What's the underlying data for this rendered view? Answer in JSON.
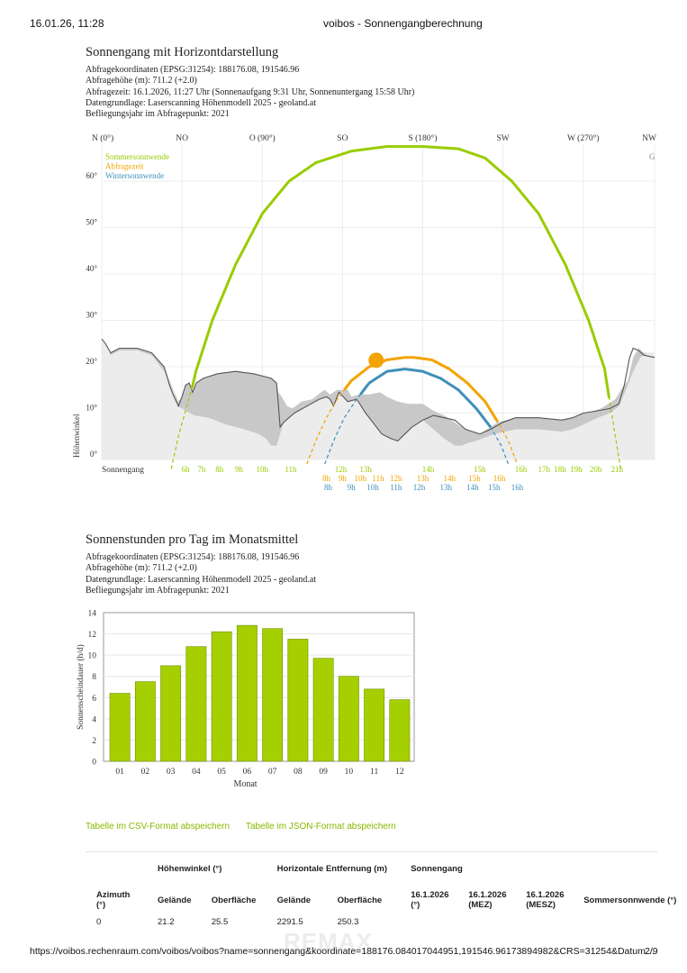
{
  "browser": {
    "datetime": "16.01.26, 11:28",
    "page_title": "voibos - Sonnengangberechnung",
    "url": "https://voibos.rechenraum.com/voibos/voibos?name=sonnengang&koordinate=188176.084017044951,191546.96173894982&CRS=31254&Datum…",
    "page_number": "2/9"
  },
  "section1": {
    "title": "Sonnengang mit Horizontdarstellung",
    "meta": [
      "Abfragekoordinaten (EPSG:31254): 188176.08, 191546.96",
      "Abfragehöhe (m): 711.2 (+2.0)",
      "Abfragezeit: 16.1.2026, 11:27 Uhr (Sonnenaufgang 9:31 Uhr,  Sonnenuntergang 15:58 Uhr)",
      "Datengrundlage: Laserscanning Höhenmodell 2025 - geoland.at",
      "Befliegungsjahr im Abfragepunkt: 2021"
    ]
  },
  "section2": {
    "title": "Sonnenstunden pro Tag im Monatsmittel",
    "meta": [
      "Abfragekoordinaten (EPSG:31254): 188176.08, 191546.96",
      "Abfragehöhe (m): 711.2 (+2.0)",
      "Datengrundlage: Laserscanning Höhenmodell 2025 - geoland.at",
      "Befliegungsjahr im Abfragepunkt: 2021"
    ]
  },
  "links": {
    "csv": "Tabelle im CSV-Format abspeichern",
    "json": "Tabelle im JSON-Format abspeichern"
  },
  "table": {
    "group_headers": [
      "Höhenwinkel (°)",
      "Horizontale Entfernung (m)",
      "Sonnengang"
    ],
    "columns": [
      "Azimuth (°)",
      "Gelände",
      "Oberfläche",
      "Gelände",
      "Oberfläche",
      "16.1.2026 (°)",
      "16.1.2026 (MEZ)",
      "16.1.2026 (MESZ)",
      "Sommersonnwende (°)"
    ],
    "rows": [
      [
        "0",
        "21.2",
        "25.5",
        "2291.5",
        "250.3",
        "",
        "",
        "",
        ""
      ]
    ]
  },
  "watermark": "REMAX",
  "chart_data": [
    {
      "type": "line",
      "title": "",
      "ylabel": "Höhenwinkel",
      "xlabel": "",
      "xlim": [
        0,
        310
      ],
      "ylim": [
        0,
        68
      ],
      "x_axis_labels": [
        {
          "az": 0,
          "label": "N (0°)"
        },
        {
          "az": 45,
          "label": "NO"
        },
        {
          "az": 90,
          "label": "O (90°)"
        },
        {
          "az": 135,
          "label": "SO"
        },
        {
          "az": 180,
          "label": "S (180°)"
        },
        {
          "az": 225,
          "label": "SW"
        },
        {
          "az": 270,
          "label": "W (270°)"
        },
        {
          "az": 315,
          "label": "NW"
        }
      ],
      "y_ticks": [
        "0°",
        "10°",
        "20°",
        "30°",
        "40°",
        "50°",
        "60°"
      ],
      "y_tick_values": [
        0,
        10,
        20,
        30,
        40,
        50,
        60
      ],
      "legend": [
        "Sommersonnwende",
        "Abfragezeit",
        "Wintersonnwende"
      ],
      "legend_placement": "top-left",
      "partial_label_right": "G",
      "colors": {
        "summer": "#99cc00",
        "query": "#f4a300",
        "winter": "#3e8fb8",
        "terrain": "#ececec",
        "surface": "#c8c8c8",
        "horizon_line": "#555555"
      },
      "terrain_horizon": [
        [
          0,
          26
        ],
        [
          2,
          25
        ],
        [
          5,
          22.5
        ],
        [
          10,
          23.5
        ],
        [
          20,
          23.5
        ],
        [
          28,
          22.5
        ],
        [
          35,
          19
        ],
        [
          40,
          14.5
        ],
        [
          43,
          11.5
        ],
        [
          47,
          10.5
        ],
        [
          52,
          9.5
        ],
        [
          60,
          9
        ],
        [
          70,
          7.5
        ],
        [
          80,
          6.5
        ],
        [
          88,
          5.5
        ],
        [
          92,
          4.5
        ],
        [
          95,
          3
        ],
        [
          98,
          3
        ],
        [
          102,
          8
        ],
        [
          108,
          10
        ],
        [
          115,
          11.5
        ],
        [
          122,
          13
        ],
        [
          126,
          13.5
        ],
        [
          128,
          13
        ],
        [
          130,
          11.5
        ],
        [
          133,
          14.5
        ],
        [
          138,
          12.5
        ],
        [
          143,
          13
        ],
        [
          148,
          10
        ],
        [
          152,
          8
        ],
        [
          157,
          5.5
        ],
        [
          162,
          4.5
        ],
        [
          166,
          4
        ],
        [
          170,
          5.5
        ],
        [
          174,
          7
        ],
        [
          180,
          8.5
        ],
        [
          186,
          6.5
        ],
        [
          192,
          4.5
        ],
        [
          198,
          3
        ],
        [
          202,
          3
        ],
        [
          205,
          3.5
        ],
        [
          210,
          4
        ],
        [
          220,
          5.5
        ],
        [
          232,
          6.5
        ],
        [
          245,
          6.5
        ],
        [
          258,
          6
        ],
        [
          264,
          6.5
        ],
        [
          270,
          7.5
        ],
        [
          278,
          9
        ],
        [
          285,
          10
        ],
        [
          290,
          11.5
        ],
        [
          295,
          16
        ],
        [
          298,
          19
        ],
        [
          302,
          22
        ],
        [
          306,
          23
        ],
        [
          310,
          23
        ]
      ],
      "surface_horizon": [
        [
          0,
          26
        ],
        [
          2,
          23.5
        ],
        [
          5,
          23
        ],
        [
          10,
          24
        ],
        [
          20,
          24
        ],
        [
          28,
          23
        ],
        [
          35,
          20
        ],
        [
          40,
          15
        ],
        [
          43,
          12.5
        ],
        [
          45,
          13.5
        ],
        [
          47,
          16
        ],
        [
          49,
          16.5
        ],
        [
          51,
          14.5
        ],
        [
          53,
          16.5
        ],
        [
          57,
          17.5
        ],
        [
          65,
          18.5
        ],
        [
          75,
          19
        ],
        [
          85,
          18.5
        ],
        [
          95,
          17.5
        ],
        [
          98,
          16.5
        ],
        [
          99,
          14.5
        ],
        [
          101,
          13.5
        ],
        [
          104,
          11.5
        ],
        [
          107,
          11
        ],
        [
          112,
          12.5
        ],
        [
          118,
          13
        ],
        [
          123,
          14.5
        ],
        [
          125,
          15
        ],
        [
          128,
          14
        ],
        [
          132,
          15
        ],
        [
          138,
          15
        ],
        [
          140,
          13.5
        ],
        [
          144,
          14
        ],
        [
          150,
          14
        ],
        [
          156,
          14.5
        ],
        [
          160,
          13.5
        ],
        [
          166,
          12.5
        ],
        [
          172,
          12
        ],
        [
          180,
          12
        ],
        [
          186,
          10.5
        ],
        [
          192,
          9.5
        ],
        [
          196,
          8.5
        ],
        [
          200,
          7.5
        ],
        [
          204,
          6.5
        ],
        [
          208,
          6
        ],
        [
          212,
          5.5
        ],
        [
          216,
          6.5
        ],
        [
          222,
          8
        ],
        [
          232,
          9
        ],
        [
          245,
          9
        ],
        [
          258,
          8.5
        ],
        [
          264,
          9
        ],
        [
          270,
          10
        ],
        [
          276,
          10.5
        ],
        [
          280,
          11
        ],
        [
          288,
          13
        ],
        [
          292,
          15.5
        ],
        [
          295,
          17
        ],
        [
          298,
          22
        ],
        [
          301,
          24
        ],
        [
          304,
          23
        ],
        [
          310,
          23
        ]
      ],
      "horizon_line": [
        [
          0,
          26
        ],
        [
          2,
          25
        ],
        [
          5,
          23
        ],
        [
          10,
          24
        ],
        [
          20,
          24
        ],
        [
          28,
          23
        ],
        [
          35,
          20
        ],
        [
          38,
          16
        ],
        [
          40,
          14
        ],
        [
          43,
          11.5
        ],
        [
          45,
          13.5
        ],
        [
          47,
          16
        ],
        [
          49,
          16.5
        ],
        [
          51,
          14.5
        ],
        [
          53,
          16.5
        ],
        [
          57,
          17.5
        ],
        [
          65,
          18.5
        ],
        [
          75,
          19
        ],
        [
          85,
          18.5
        ],
        [
          95,
          17.5
        ],
        [
          98,
          16.5
        ],
        [
          99,
          12
        ],
        [
          100,
          7
        ],
        [
          102,
          8
        ],
        [
          108,
          10
        ],
        [
          115,
          11.5
        ],
        [
          122,
          13
        ],
        [
          126,
          13.5
        ],
        [
          128,
          13
        ],
        [
          130,
          11.5
        ],
        [
          133,
          14.5
        ],
        [
          138,
          12.5
        ],
        [
          143,
          13
        ],
        [
          148,
          10
        ],
        [
          152,
          8
        ],
        [
          157,
          5.5
        ],
        [
          162,
          4.5
        ],
        [
          166,
          4
        ],
        [
          170,
          5.5
        ],
        [
          174,
          7
        ],
        [
          180,
          8.5
        ],
        [
          186,
          9.5
        ],
        [
          192,
          9
        ],
        [
          198,
          8.5
        ],
        [
          204,
          6.5
        ],
        [
          208,
          6
        ],
        [
          212,
          5.5
        ],
        [
          218,
          6.5
        ],
        [
          225,
          8
        ],
        [
          232,
          9
        ],
        [
          245,
          9
        ],
        [
          258,
          8.5
        ],
        [
          264,
          9
        ],
        [
          270,
          10
        ],
        [
          278,
          10.5
        ],
        [
          285,
          11
        ],
        [
          290,
          12
        ],
        [
          293,
          16
        ],
        [
          296,
          22
        ],
        [
          298,
          24
        ],
        [
          301,
          23.5
        ],
        [
          304,
          22.5
        ],
        [
          310,
          22
        ]
      ],
      "series": [
        {
          "name": "Sommersonnwende",
          "color": "#99cc00",
          "points": [
            [
              39,
              -2
            ],
            [
              43,
              5
            ],
            [
              51,
              16
            ],
            [
              52.8,
              19
            ],
            [
              62,
              30
            ],
            [
              75,
              42
            ],
            [
              90,
              53
            ],
            [
              105,
              60
            ],
            [
              120,
              64
            ],
            [
              140,
              66.5
            ],
            [
              160,
              67.5
            ],
            [
              180,
              67.5
            ],
            [
              200,
              67
            ],
            [
              215,
              65
            ],
            [
              230,
              60
            ],
            [
              245,
              53
            ],
            [
              260,
              42
            ],
            [
              273,
              30
            ],
            [
              282,
              19.5
            ],
            [
              285,
              12
            ],
            [
              291,
              -2
            ]
          ],
          "hours": [
            {
              "az": 47,
              "label": "6h"
            },
            {
              "az": 56,
              "label": "7h"
            },
            {
              "az": 66,
              "label": "8h"
            },
            {
              "az": 77,
              "label": "9h"
            },
            {
              "az": 90,
              "label": "10h"
            },
            {
              "az": 106,
              "label": "11h"
            },
            {
              "az": 148,
              "label": "13h"
            },
            {
              "az": 183,
              "label": "14h"
            },
            {
              "az": 212,
              "label": "15h"
            },
            {
              "az": 235,
              "label": "16h"
            },
            {
              "az": 248,
              "label": "17h"
            },
            {
              "az": 257,
              "label": "18h"
            },
            {
              "az": 266,
              "label": "19h"
            },
            {
              "az": 277,
              "label": "20h"
            },
            {
              "az": 289,
              "label": "21h"
            }
          ]
        },
        {
          "name": "Abfragezeit",
          "color": "#f4a300",
          "points": [
            [
              115,
              -1
            ],
            [
              120,
              4
            ],
            [
              126,
              9
            ],
            [
              132,
              13
            ],
            [
              140,
              17
            ],
            [
              150,
              20
            ],
            [
              160,
              21.5
            ],
            [
              170,
              22
            ],
            [
              175,
              22
            ],
            [
              185,
              21.5
            ],
            [
              195,
              19.5
            ],
            [
              205,
              16.5
            ],
            [
              215,
              12.5
            ],
            [
              223,
              7.5
            ],
            [
              228,
              4
            ],
            [
              233,
              -1
            ]
          ],
          "hours": [
            {
              "az": 126,
              "label": "8h"
            },
            {
              "az": 135,
              "label": "9h"
            },
            {
              "az": 145,
              "label": "10h"
            },
            {
              "az": 155,
              "label": "11h"
            },
            {
              "az": 165,
              "label": "12h"
            },
            {
              "az": 180,
              "label": "13h"
            },
            {
              "az": 195,
              "label": "14h"
            },
            {
              "az": 209,
              "label": "15h"
            },
            {
              "az": 223,
              "label": "16h"
            }
          ],
          "sun_position": {
            "az": 166,
            "alt": 21
          }
        },
        {
          "name": "Wintersonnwende",
          "color": "#3e8fb8",
          "points": [
            [
              125,
              -1
            ],
            [
              130,
              4
            ],
            [
              136,
              9
            ],
            [
              143,
              13
            ],
            [
              150,
              16.5
            ],
            [
              160,
              19
            ],
            [
              170,
              19.5
            ],
            [
              180,
              19
            ],
            [
              190,
              17.5
            ],
            [
              200,
              15
            ],
            [
              210,
              11
            ],
            [
              218,
              7
            ],
            [
              224,
              3
            ],
            [
              228,
              -1
            ]
          ],
          "hours": [
            {
              "az": 127,
              "label": "8h"
            },
            {
              "az": 140,
              "label": "9h"
            },
            {
              "az": 152,
              "label": "10h"
            },
            {
              "az": 165,
              "label": "11h"
            },
            {
              "az": 178,
              "label": "12h"
            },
            {
              "az": 193,
              "label": "13h"
            },
            {
              "az": 208,
              "label": "14h"
            },
            {
              "az": 220,
              "label": "15h"
            },
            {
              "az": 233,
              "label": "16h"
            }
          ]
        }
      ],
      "x_row_label": "Sonnengang",
      "summer_extra_hour": {
        "az": 127,
        "label": "12h"
      }
    },
    {
      "type": "bar",
      "title": "",
      "xlabel": "Monat",
      "ylabel": "Sonnenscheindauer (h/d)",
      "categories": [
        "01",
        "02",
        "03",
        "04",
        "05",
        "06",
        "07",
        "08",
        "09",
        "10",
        "11",
        "12"
      ],
      "values": [
        6.4,
        7.5,
        9.0,
        10.8,
        12.2,
        12.8,
        12.5,
        11.5,
        9.7,
        8.0,
        6.8,
        5.8
      ],
      "ylim": [
        0,
        14
      ],
      "y_ticks": [
        0,
        2,
        4,
        6,
        8,
        10,
        12,
        14
      ],
      "grid": true,
      "color": "#a6cf00"
    }
  ]
}
